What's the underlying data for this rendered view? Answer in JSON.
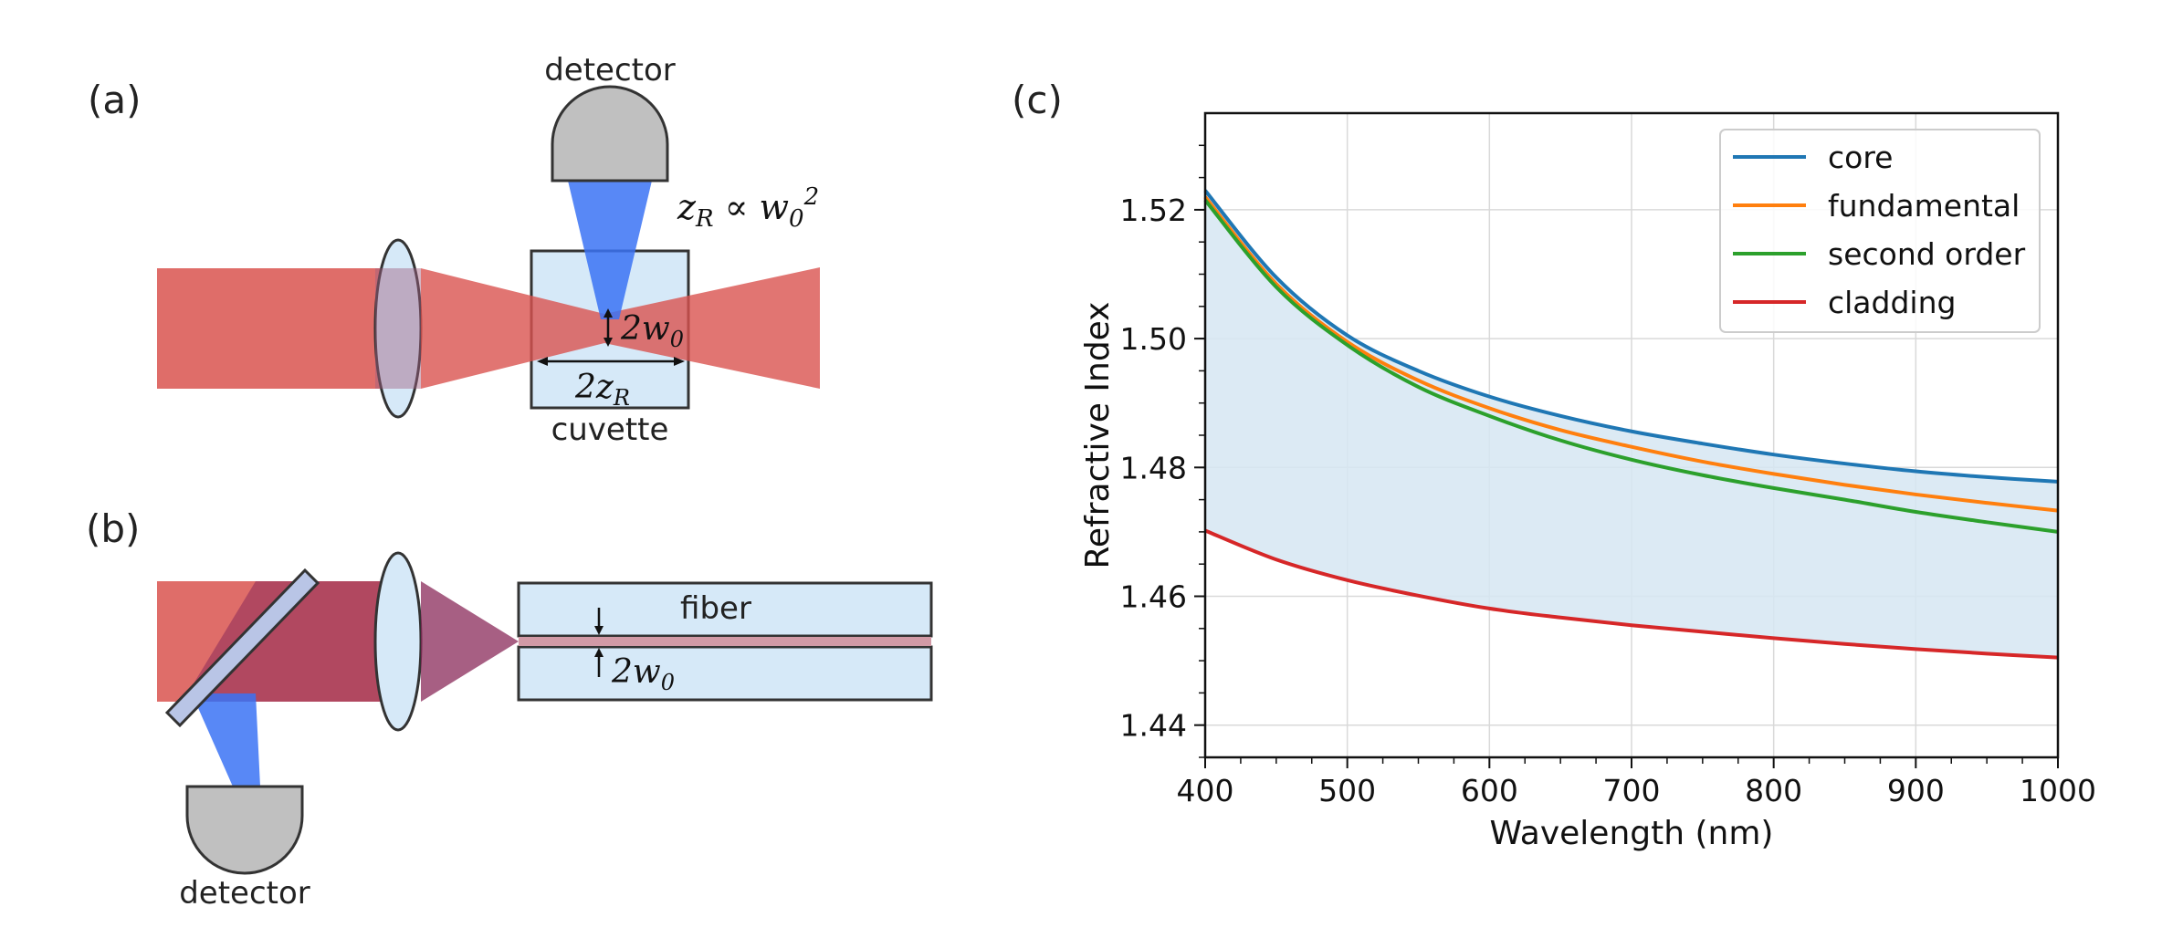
{
  "panels": {
    "a": {
      "label": "(a)",
      "detector_label": "detector",
      "cuvette_label": "cuvette",
      "formula_rayleigh": "z_R ∝ w_0²",
      "waist_label": "2w₀",
      "range_label": "2z_R"
    },
    "b": {
      "label": "(b)",
      "detector_label": "detector",
      "fiber_label": "fiber",
      "waist_label": "2w₀"
    },
    "c": {
      "label": "(c)"
    }
  },
  "colors": {
    "beam_red": "#d9534f",
    "light_blue": "#d6e9f8",
    "blue_cone": "#3b73f5",
    "detector_gray": "#c0c0c0",
    "core": "#1f77b4",
    "fundamental": "#ff7f0e",
    "second_order": "#2ca02c",
    "cladding": "#d62728",
    "fill": "#d6e6f2"
  },
  "chart_data": {
    "type": "line",
    "title": "",
    "xlabel": "Wavelength (nm)",
    "ylabel": "Refractive Index",
    "xlim": [
      400,
      1000
    ],
    "ylim": [
      1.435,
      1.535
    ],
    "xticks": [
      400,
      500,
      600,
      700,
      800,
      900,
      1000
    ],
    "yticks": [
      1.44,
      1.46,
      1.48,
      1.5,
      1.52
    ],
    "ytick_labels": [
      "1.44",
      "1.46",
      "1.48",
      "1.50",
      "1.52"
    ],
    "grid": true,
    "legend_position": "top-right",
    "x": [
      400,
      450,
      500,
      550,
      600,
      650,
      700,
      750,
      800,
      850,
      900,
      950,
      1000
    ],
    "series": [
      {
        "name": "core",
        "color": "#1f77b4",
        "values": [
          1.523,
          1.5095,
          1.5005,
          1.495,
          1.491,
          1.488,
          1.4856,
          1.4837,
          1.482,
          1.4806,
          1.4794,
          1.4785,
          1.4778
        ]
      },
      {
        "name": "fundamental",
        "color": "#ff7f0e",
        "values": [
          1.522,
          1.5085,
          1.4995,
          1.4935,
          1.4892,
          1.4858,
          1.4832,
          1.4809,
          1.479,
          1.4773,
          1.4758,
          1.4745,
          1.4733
        ]
      },
      {
        "name": "second order",
        "color": "#2ca02c",
        "values": [
          1.5215,
          1.508,
          1.499,
          1.4925,
          1.488,
          1.4842,
          1.4812,
          1.4788,
          1.4768,
          1.475,
          1.4731,
          1.4715,
          1.47
        ]
      },
      {
        "name": "cladding",
        "color": "#d62728",
        "values": [
          1.4702,
          1.4657,
          1.4625,
          1.4601,
          1.4581,
          1.4567,
          1.4555,
          1.4545,
          1.4535,
          1.4526,
          1.4518,
          1.4511,
          1.4505
        ]
      }
    ],
    "fill_between": {
      "upper": "core",
      "lower": "cladding",
      "color": "#d6e6f2"
    }
  }
}
